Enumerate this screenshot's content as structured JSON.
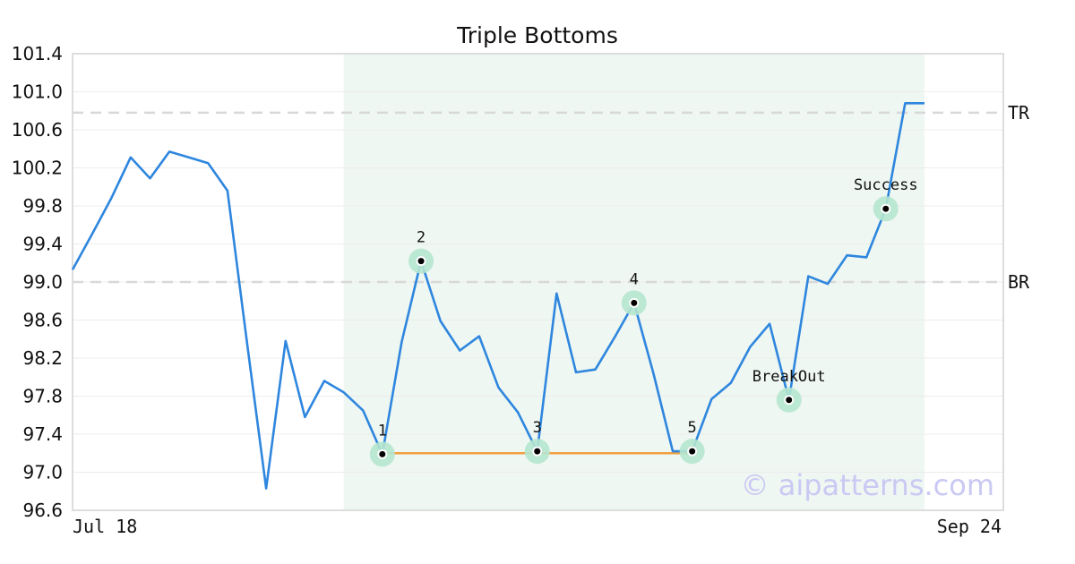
{
  "chart_data": {
    "type": "line",
    "title": "Triple Bottoms",
    "xlabel": "",
    "ylabel": "",
    "ylim": [
      96.6,
      101.4
    ],
    "y_ticks": [
      "96.6",
      "97.0",
      "97.4",
      "97.8",
      "98.2",
      "98.6",
      "99.0",
      "99.4",
      "99.8",
      "100.2",
      "100.6",
      "101.0",
      "101.4"
    ],
    "x_tick_labels": [
      "Jul 18",
      "Sep 24"
    ],
    "grid": true,
    "series_color": "#2e86de",
    "values": [
      99.13,
      99.5,
      99.88,
      100.31,
      100.09,
      100.37,
      100.31,
      100.25,
      99.96,
      98.38,
      96.83,
      98.38,
      97.58,
      97.96,
      97.84,
      97.65,
      97.19,
      98.37,
      99.22,
      98.59,
      98.28,
      98.43,
      97.89,
      97.63,
      97.22,
      98.88,
      98.05,
      98.08,
      98.42,
      98.78,
      98.04,
      97.22,
      97.22,
      97.77,
      97.94,
      98.32,
      98.56,
      97.76,
      99.06,
      98.98,
      99.28,
      99.26,
      99.77,
      100.88,
      100.88
    ],
    "reference_lines": [
      {
        "label": "TR",
        "value": 100.78
      },
      {
        "label": "BR",
        "value": 99.0
      }
    ],
    "pattern_region": {
      "start_index": 14,
      "end_index": 44,
      "color": "#eef7f2"
    },
    "support_line": {
      "start_index": 16,
      "end_index": 32,
      "value": 97.2,
      "color": "#f0a040"
    },
    "annotations": [
      {
        "label": "1",
        "index": 16,
        "value": 97.19
      },
      {
        "label": "2",
        "index": 18,
        "value": 99.22
      },
      {
        "label": "3",
        "index": 24,
        "value": 97.22
      },
      {
        "label": "4",
        "index": 29,
        "value": 98.78
      },
      {
        "label": "5",
        "index": 32,
        "value": 97.22
      },
      {
        "label": "BreakOut",
        "index": 37,
        "value": 97.76
      },
      {
        "label": "Success",
        "index": 42,
        "value": 99.77
      }
    ],
    "watermark": "© aipatterns.com"
  }
}
